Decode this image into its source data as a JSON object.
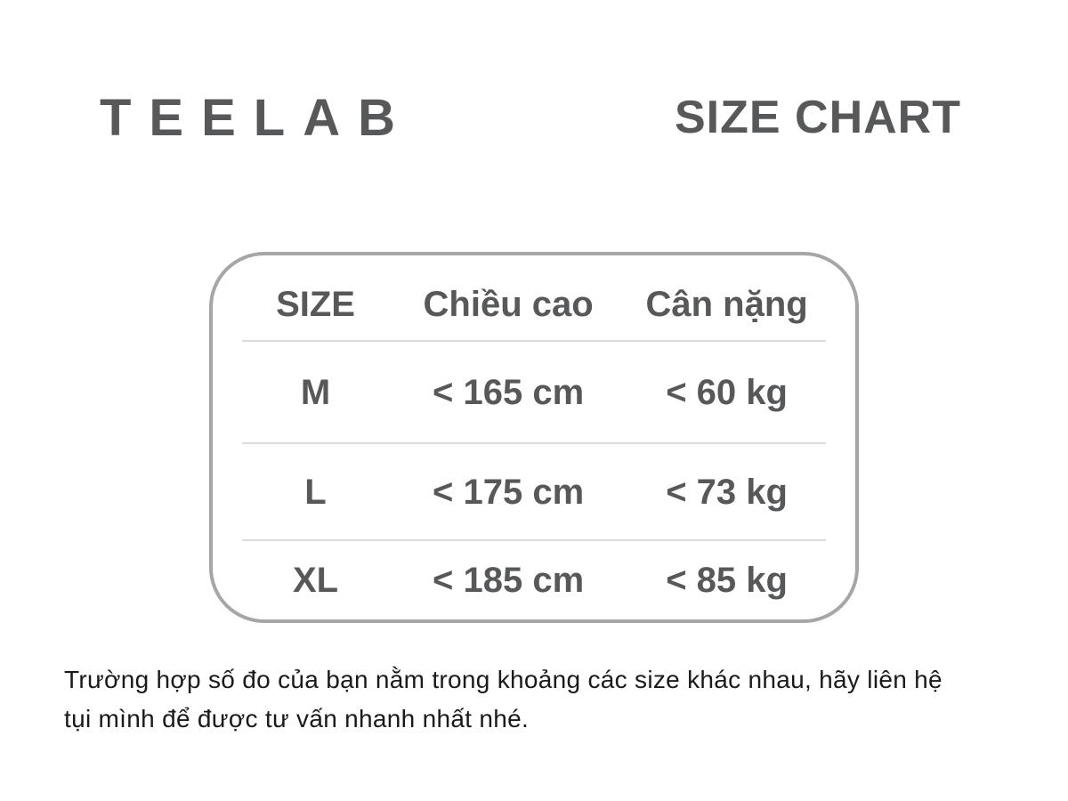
{
  "brand": "TEELAB",
  "title": "SIZE CHART",
  "chart_data": {
    "type": "table",
    "title": "SIZE CHART",
    "columns": [
      "SIZE",
      "Chiều cao",
      "Cân nặng"
    ],
    "rows": [
      [
        "M",
        "< 165 cm",
        "< 60 kg"
      ],
      [
        "L",
        "< 175 cm",
        "< 73 kg"
      ],
      [
        "XL",
        "< 185 cm",
        "< 85 kg"
      ]
    ]
  },
  "footer_note": "Trường hợp số đo của bạn nằm trong khoảng các size khác nhau, hãy liên hệ tụi mình để được tư vấn nhanh nhất nhé.",
  "colors": {
    "text_gray": "#57585a",
    "border_gray": "#a6a6a6",
    "divider_gray": "#dcdcdc",
    "footer_text": "#1a1a1a",
    "background": "#ffffff"
  }
}
